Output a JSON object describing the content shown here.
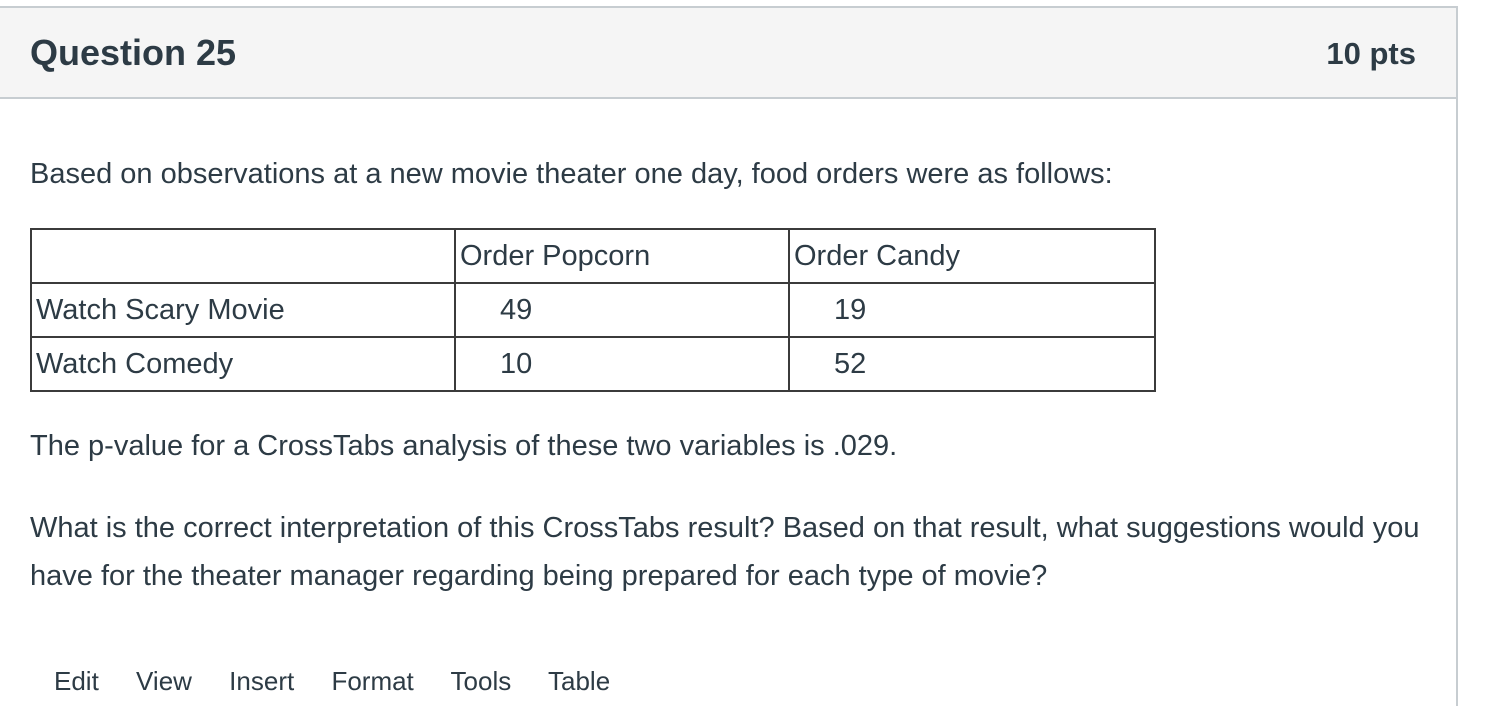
{
  "question": {
    "title": "Question 25",
    "points": "10 pts",
    "intro": "Based on observations at a new movie theater one day, food orders were as follows:",
    "table": {
      "headers": [
        "",
        "Order Popcorn",
        "Order Candy"
      ],
      "rows": [
        [
          "Watch Scary Movie",
          "49",
          "19"
        ],
        [
          "Watch Comedy",
          "10",
          "52"
        ]
      ]
    },
    "pvalue_text": "The p-value for a CrossTabs analysis of these two variables is .029.",
    "prompt_text": "What is the correct interpretation of this CrossTabs result?  Based on that result, what suggestions would you have for the theater manager regarding being prepared for each type of movie?"
  },
  "editor_menu": [
    "Edit",
    "View",
    "Insert",
    "Format",
    "Tools",
    "Table"
  ]
}
